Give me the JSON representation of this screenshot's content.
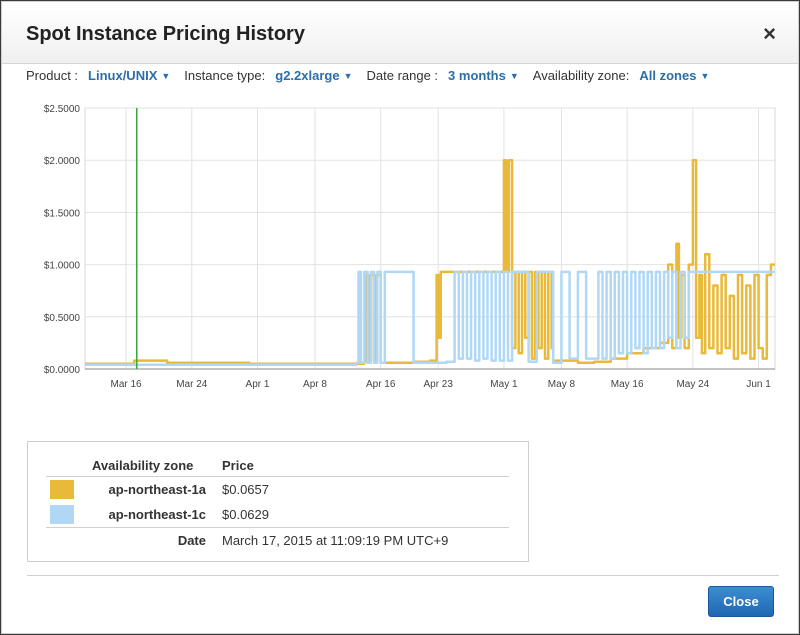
{
  "dialog": {
    "title": "Spot Instance Pricing History",
    "close_icon": "×"
  },
  "filters": {
    "product_label": "Product :",
    "product_value": "Linux/UNIX",
    "instance_type_label": "Instance type:",
    "instance_type_value": "g2.2xlarge",
    "date_range_label": "Date range :",
    "date_range_value": "3 months",
    "az_label": "Availability zone:",
    "az_value": "All zones"
  },
  "colors": {
    "zone_1a": "#e9b93a",
    "zone_1c": "#b0d8f6",
    "marker": "#3aa63a",
    "accent": "#2b6ea8"
  },
  "chart_data": {
    "type": "line",
    "ylabel": "",
    "xlabel": "",
    "ylim": [
      0,
      2.5
    ],
    "y_ticks": [
      "$0.0000",
      "$0.5000",
      "$1.0000",
      "$1.5000",
      "$2.0000",
      "$2.5000"
    ],
    "y_tick_values": [
      0,
      0.5,
      1.0,
      1.5,
      2.0,
      2.5
    ],
    "x_ticks": [
      "Mar 16",
      "Mar 24",
      "Apr 1",
      "Apr 8",
      "Apr 16",
      "Apr 23",
      "May 1",
      "May 8",
      "May 16",
      "May 24",
      "Jun 1"
    ],
    "x_tick_days": [
      5,
      13,
      21,
      28,
      36,
      43,
      51,
      58,
      66,
      74,
      82
    ],
    "xlim_days": [
      0,
      84
    ],
    "marker_day": 6.3,
    "series": [
      {
        "name": "ap-northeast-1a",
        "color": "#e9b93a",
        "x": [
          0,
          6,
          10,
          20,
          30,
          34,
          34.2,
          34.5,
          34.8,
          35.2,
          35.5,
          36,
          40,
          42,
          42.8,
          43,
          43.3,
          44,
          45,
          47,
          49,
          50.5,
          51,
          51.3,
          51.6,
          52,
          52.4,
          52.8,
          53.2,
          53.6,
          54,
          54.4,
          54.8,
          55.2,
          55.6,
          56,
          56.4,
          56.8,
          57,
          60,
          62,
          64,
          66,
          68,
          70,
          71,
          71.5,
          72,
          72.3,
          72.6,
          73,
          73.5,
          74,
          74.4,
          74.8,
          75.1,
          75.5,
          76,
          76.5,
          77,
          77.5,
          78,
          78.5,
          79,
          79.5,
          80,
          80.5,
          81,
          81.5,
          82,
          82.5,
          83,
          83.5
        ],
        "values": [
          0.05,
          0.08,
          0.06,
          0.05,
          0.05,
          0.07,
          0.9,
          0.08,
          0.9,
          0.07,
          0.9,
          0.06,
          0.07,
          0.08,
          0.9,
          0.3,
          0.93,
          0.93,
          0.93,
          0.93,
          0.93,
          0.93,
          2.0,
          0.93,
          2.0,
          0.2,
          0.93,
          0.15,
          0.93,
          0.3,
          0.93,
          0.1,
          0.93,
          0.2,
          0.93,
          0.1,
          0.93,
          0.2,
          0.08,
          0.06,
          0.07,
          0.1,
          0.15,
          0.2,
          0.25,
          1.0,
          0.2,
          1.2,
          0.3,
          0.9,
          0.2,
          1.0,
          2.0,
          0.3,
          0.9,
          0.15,
          1.1,
          0.2,
          0.8,
          0.15,
          0.9,
          0.2,
          0.7,
          0.1,
          0.9,
          0.15,
          0.8,
          0.1,
          0.9,
          0.2,
          0.1,
          0.9,
          1.0
        ]
      },
      {
        "name": "ap-northeast-1c",
        "color": "#b0d8f6",
        "x": [
          0,
          10,
          20,
          30,
          33,
          33.3,
          33.6,
          34,
          34.4,
          34.8,
          35.2,
          35.6,
          36,
          36.5,
          40,
          44,
          45,
          45.5,
          46,
          46.5,
          47,
          47.5,
          48,
          48.5,
          49,
          49.5,
          50,
          50.5,
          51,
          51.5,
          52,
          53,
          54,
          55,
          56,
          57,
          58,
          59,
          60,
          61,
          62,
          62.5,
          63,
          63.5,
          64,
          64.5,
          65,
          65.5,
          66,
          66.5,
          67,
          67.5,
          68,
          68.5,
          69,
          69.5,
          70,
          70.5,
          71,
          71.5,
          72,
          72.5,
          73,
          73.5,
          74,
          75,
          76,
          78,
          80,
          82,
          84
        ],
        "values": [
          0.04,
          0.04,
          0.04,
          0.04,
          0.06,
          0.93,
          0.06,
          0.93,
          0.06,
          0.93,
          0.06,
          0.93,
          0.06,
          0.93,
          0.06,
          0.07,
          0.93,
          0.1,
          0.93,
          0.1,
          0.93,
          0.08,
          0.93,
          0.1,
          0.93,
          0.08,
          0.93,
          0.08,
          0.93,
          0.08,
          0.93,
          0.93,
          0.07,
          0.93,
          0.93,
          0.06,
          0.93,
          0.1,
          0.93,
          0.1,
          0.1,
          0.93,
          0.1,
          0.93,
          0.1,
          0.93,
          0.15,
          0.93,
          0.15,
          0.93,
          0.2,
          0.93,
          0.15,
          0.93,
          0.2,
          0.93,
          0.2,
          0.93,
          0.3,
          0.93,
          0.2,
          0.93,
          0.3,
          0.93,
          0.93,
          0.93,
          0.93,
          0.93,
          0.93,
          0.93,
          0.93
        ]
      }
    ]
  },
  "legend": {
    "col_zone": "Availability zone",
    "col_price": "Price",
    "rows": [
      {
        "zone": "ap-northeast-1a",
        "price": "$0.0657"
      },
      {
        "zone": "ap-northeast-1c",
        "price": "$0.0629"
      }
    ],
    "date_label": "Date",
    "date_value": "March 17, 2015 at 11:09:19 PM UTC+9"
  },
  "footer": {
    "close_label": "Close"
  }
}
